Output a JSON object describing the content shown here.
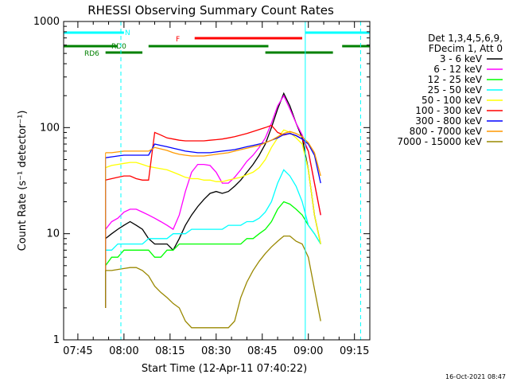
{
  "chart_data": {
    "type": "line",
    "title": "RHESSI Observing Summary Count Rates",
    "xlabel": "Start Time (12-Apr-11 07:40:22)",
    "ylabel": "Count Rate (s⁻¹ detector⁻¹)",
    "xlim": [
      "07:40:22",
      "09:20:00"
    ],
    "ylim": [
      1,
      1000
    ],
    "yscale": "log",
    "x_ticks": [
      "07:45",
      "08:00",
      "08:15",
      "08:30",
      "08:45",
      "09:00",
      "09:15"
    ],
    "y_ticks": [
      "1",
      "10",
      "100",
      "1000"
    ],
    "legend_header": [
      "Det 1,3,4,5,6,9,",
      "FDecim 1, Att 0"
    ],
    "legend_position": "right",
    "timestamp": "16-Oct-2021 08:47",
    "x": [
      "07:54",
      "07:56",
      "07:58",
      "08:00",
      "08:02",
      "08:04",
      "08:06",
      "08:08",
      "08:10",
      "08:12",
      "08:14",
      "08:16",
      "08:18",
      "08:20",
      "08:22",
      "08:24",
      "08:26",
      "08:28",
      "08:30",
      "08:32",
      "08:34",
      "08:36",
      "08:38",
      "08:40",
      "08:42",
      "08:44",
      "08:46",
      "08:48",
      "08:50",
      "08:52",
      "08:54",
      "08:56",
      "08:58",
      "09:00",
      "09:02",
      "09:04"
    ],
    "series": [
      {
        "name": "3 - 6 keV",
        "color": "#000000",
        "values": [
          9,
          10,
          11,
          12,
          13,
          12,
          11,
          9,
          8,
          8,
          8,
          7,
          9,
          12,
          15,
          18,
          21,
          24,
          25,
          24,
          25,
          28,
          32,
          38,
          45,
          55,
          70,
          100,
          150,
          210,
          160,
          110,
          80,
          40,
          15,
          8
        ]
      },
      {
        "name": "6 - 12 keV",
        "color": "#ff00ff",
        "values": [
          11,
          13,
          14,
          16,
          17,
          17,
          16,
          15,
          14,
          13,
          12,
          11,
          15,
          25,
          38,
          45,
          45,
          44,
          38,
          30,
          30,
          34,
          40,
          48,
          55,
          65,
          80,
          110,
          160,
          200,
          150,
          110,
          85,
          60,
          30,
          15
        ]
      },
      {
        "name": "12 - 25 keV",
        "color": "#00ff00",
        "values": [
          5,
          6,
          6,
          7,
          7,
          7,
          7,
          7,
          6,
          6,
          7,
          7,
          8,
          8,
          8,
          8,
          8,
          8,
          8,
          8,
          8,
          8,
          8,
          9,
          9,
          10,
          11,
          13,
          17,
          20,
          19,
          17,
          15,
          12,
          10,
          8
        ]
      },
      {
        "name": "25 - 50 keV",
        "color": "#00ffff",
        "values": [
          7,
          7,
          8,
          8,
          8,
          8,
          8,
          9,
          9,
          9,
          9,
          10,
          10,
          10,
          11,
          11,
          11,
          11,
          11,
          11,
          12,
          12,
          12,
          13,
          13,
          14,
          16,
          20,
          30,
          40,
          35,
          28,
          20,
          12,
          10,
          8
        ]
      },
      {
        "name": "50 - 100 keV",
        "color": "#ffff00",
        "values": [
          42,
          44,
          45,
          46,
          47,
          47,
          45,
          43,
          42,
          41,
          40,
          38,
          36,
          34,
          33,
          33,
          32,
          32,
          31,
          31,
          32,
          33,
          34,
          36,
          38,
          42,
          50,
          65,
          80,
          95,
          90,
          80,
          70,
          40,
          15,
          8
        ]
      },
      {
        "name": "100 - 300 keV",
        "color": "#ff0000",
        "values": [
          32,
          33,
          34,
          35,
          35,
          33,
          32,
          32,
          90,
          85,
          80,
          78,
          76,
          75,
          75,
          75,
          75,
          76,
          77,
          78,
          80,
          82,
          85,
          88,
          92,
          96,
          100,
          105,
          90,
          85,
          88,
          84,
          78,
          60,
          30,
          15
        ]
      },
      {
        "name": "300 - 800 keV",
        "color": "#0000ff",
        "values": [
          52,
          53,
          54,
          55,
          55,
          55,
          55,
          55,
          70,
          68,
          66,
          64,
          62,
          60,
          59,
          58,
          58,
          58,
          59,
          60,
          61,
          62,
          64,
          66,
          68,
          70,
          72,
          76,
          80,
          86,
          88,
          84,
          78,
          70,
          55,
          30
        ]
      },
      {
        "name": "800 - 7000 keV",
        "color": "#ff9900",
        "values": [
          58,
          58,
          59,
          60,
          60,
          60,
          60,
          60,
          65,
          63,
          61,
          58,
          56,
          55,
          54,
          54,
          54,
          55,
          56,
          57,
          58,
          60,
          62,
          64,
          66,
          68,
          72,
          76,
          82,
          88,
          92,
          88,
          82,
          72,
          58,
          35
        ]
      },
      {
        "name": "7000 - 15000 keV",
        "color": "#998800",
        "values": [
          4.5,
          4.5,
          4.6,
          4.7,
          4.8,
          4.8,
          4.5,
          4,
          3.2,
          2.8,
          2.5,
          2.2,
          2,
          1.5,
          1.3,
          1.3,
          1.3,
          1.3,
          1.3,
          1.3,
          1.3,
          1.5,
          2.5,
          3.5,
          4.5,
          5.5,
          6.5,
          7.5,
          8.5,
          9.5,
          9.5,
          8.5,
          8,
          6,
          3,
          1.5
        ]
      }
    ],
    "flags": {
      "N": {
        "label": "N",
        "color": "#00ffff",
        "intervals": [
          [
            "07:40:22",
            "08:00"
          ],
          [
            "08:59",
            "09:20"
          ]
        ]
      },
      "F": {
        "label": "F",
        "color": "#ff0000",
        "intervals": [
          [
            "08:23",
            "08:58"
          ]
        ]
      },
      "RD0": {
        "label": "RD0",
        "color": "#008000",
        "intervals": [
          [
            "07:40:22",
            "07:58"
          ],
          [
            "08:08",
            "08:47"
          ],
          [
            "09:11",
            "09:20"
          ]
        ]
      },
      "RD6": {
        "label": "RD6",
        "color": "#008000",
        "intervals": [
          [
            "07:54",
            "08:06"
          ],
          [
            "08:46",
            "09:08"
          ]
        ]
      }
    },
    "vertical_lines": [
      {
        "time": "07:59",
        "style": "dashed",
        "color": "#00ffff"
      },
      {
        "time": "08:59",
        "style": "solid",
        "color": "#00ffff"
      },
      {
        "time": "09:17",
        "style": "dashed",
        "color": "#00ffff"
      }
    ]
  }
}
